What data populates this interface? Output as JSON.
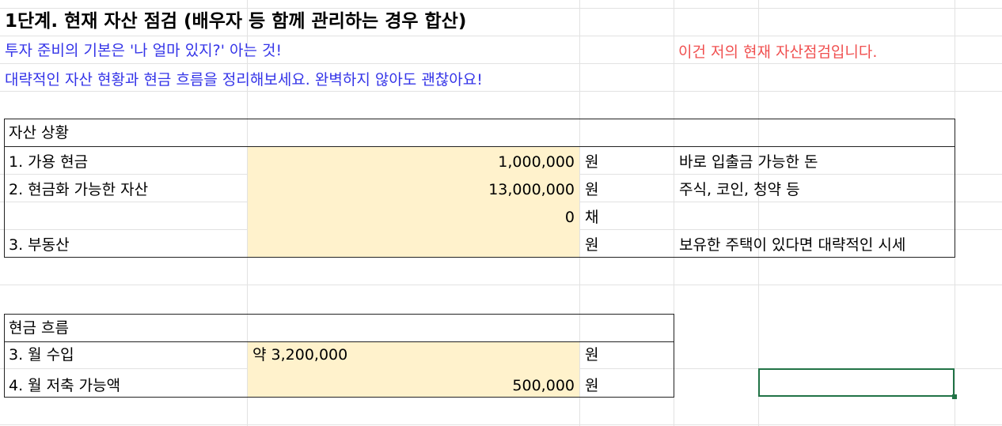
{
  "title": "1단계. 현재 자산 점검 (배우자 등 함께 관리하는 경우 합산)",
  "subtitle1": "투자 준비의 기본은 '나 얼마 있지?' 아는 것!",
  "subtitle2": "대략적인 자산 현황과 현금 흐름을 정리해보세요. 완벽하지 않아도 괜찮아요!",
  "note": "이건 저의 현재 자산점검입니다.",
  "colors": {
    "input_fill": "#fff2cc",
    "blue_text": "#3434e8",
    "red_text": "#f05050",
    "selection": "#217346"
  },
  "assets": {
    "header": "자산 상황",
    "rows": [
      {
        "label": "1. 가용 현금",
        "value": "1,000,000",
        "unit": "원",
        "note": "바로 입출금 가능한 돈"
      },
      {
        "label": "2. 현금화 가능한 자산",
        "value": "13,000,000",
        "unit": "원",
        "note": "주식, 코인, 청약 등"
      },
      {
        "label": "",
        "value": "0",
        "unit": "채",
        "note": ""
      },
      {
        "label": "3. 부동산",
        "value": "",
        "unit": "원",
        "note": "보유한 주택이 있다면 대략적인 시세"
      }
    ]
  },
  "cashflow": {
    "header": "현금 흐름",
    "rows": [
      {
        "label": "3. 월 수입",
        "value": "약 3,200,000",
        "unit": "원"
      },
      {
        "label": "4. 월 저축 가능액",
        "value": "500,000",
        "unit": "원"
      }
    ]
  }
}
